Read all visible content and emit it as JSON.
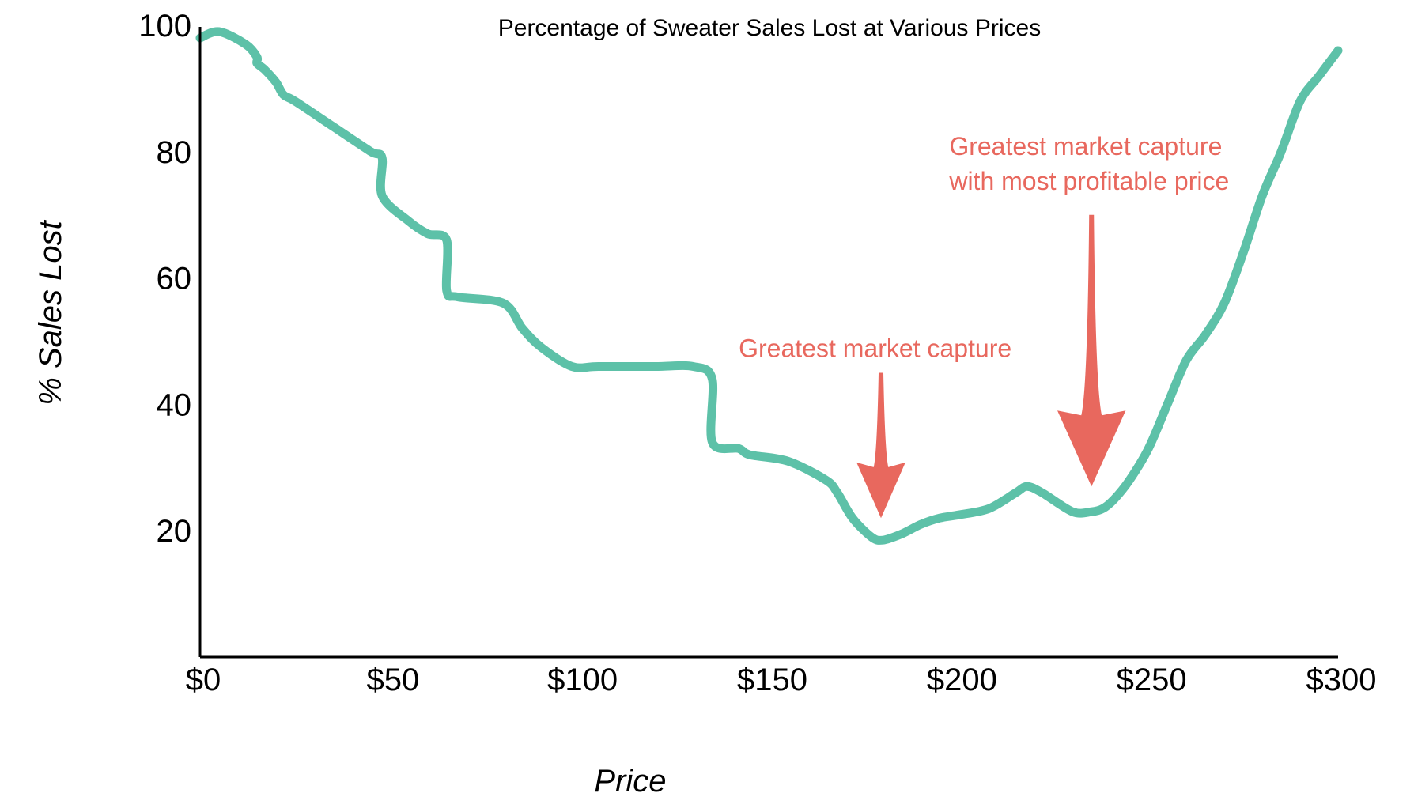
{
  "chart_data": {
    "type": "line",
    "title": "Percentage of Sweater Sales Lost at Various Prices",
    "xlabel": "Price",
    "ylabel": "% Sales Lost",
    "xlim": [
      0,
      300
    ],
    "ylim": [
      0,
      100
    ],
    "x_ticks": [
      {
        "value": 0,
        "label": "$0"
      },
      {
        "value": 50,
        "label": "$50"
      },
      {
        "value": 100,
        "label": "$100"
      },
      {
        "value": 150,
        "label": "$150"
      },
      {
        "value": 200,
        "label": "$200"
      },
      {
        "value": 250,
        "label": "$250"
      },
      {
        "value": 300,
        "label": "$300"
      }
    ],
    "y_ticks": [
      {
        "value": 20,
        "label": "20"
      },
      {
        "value": 40,
        "label": "40"
      },
      {
        "value": 60,
        "label": "60"
      },
      {
        "value": 80,
        "label": "80"
      },
      {
        "value": 100,
        "label": "100"
      }
    ],
    "grid": false,
    "series": [
      {
        "color": "#5DC1A8",
        "points": [
          [
            0,
            98
          ],
          [
            5,
            99
          ],
          [
            12,
            97
          ],
          [
            15,
            95
          ],
          [
            15,
            94
          ],
          [
            17,
            93
          ],
          [
            20,
            91
          ],
          [
            22,
            89
          ],
          [
            25,
            88
          ],
          [
            35,
            84
          ],
          [
            45,
            80
          ],
          [
            48,
            79
          ],
          [
            48,
            73
          ],
          [
            55,
            69
          ],
          [
            60,
            67
          ],
          [
            65,
            66
          ],
          [
            65,
            58
          ],
          [
            68,
            57
          ],
          [
            80,
            56
          ],
          [
            85,
            52
          ],
          [
            90,
            49
          ],
          [
            98,
            46
          ],
          [
            105,
            46
          ],
          [
            120,
            46
          ],
          [
            130,
            46
          ],
          [
            135,
            44
          ],
          [
            135,
            34
          ],
          [
            142,
            33
          ],
          [
            145,
            32
          ],
          [
            155,
            31
          ],
          [
            165,
            28
          ],
          [
            168,
            26
          ],
          [
            172,
            22
          ],
          [
            177,
            19
          ],
          [
            180,
            18.5
          ],
          [
            185,
            19.5
          ],
          [
            190,
            21
          ],
          [
            195,
            22
          ],
          [
            200,
            22.5
          ],
          [
            208,
            23.5
          ],
          [
            215,
            26
          ],
          [
            218,
            27
          ],
          [
            222,
            26
          ],
          [
            230,
            23
          ],
          [
            235,
            23
          ],
          [
            238,
            23.5
          ],
          [
            241,
            25
          ],
          [
            245,
            28
          ],
          [
            250,
            33
          ],
          [
            255,
            40
          ],
          [
            260,
            47
          ],
          [
            265,
            51
          ],
          [
            270,
            56
          ],
          [
            275,
            64
          ],
          [
            280,
            73
          ],
          [
            285,
            80
          ],
          [
            290,
            88
          ],
          [
            295,
            92
          ],
          [
            300,
            96
          ]
        ]
      }
    ],
    "annotations": [
      {
        "text_lines": [
          "Greatest market capture"
        ],
        "color": "#E8685E",
        "arrow_from": [
          179.5,
          45
        ],
        "arrow_to": [
          179.5,
          22
        ],
        "text_pos": [
          142,
          47.5
        ]
      },
      {
        "text_lines": [
          "Greatest market capture",
          "with most profitable price"
        ],
        "color": "#E8685E",
        "arrow_from": [
          235,
          70
        ],
        "arrow_to": [
          235,
          27
        ],
        "text_pos": [
          197.5,
          79.5
        ]
      }
    ]
  }
}
